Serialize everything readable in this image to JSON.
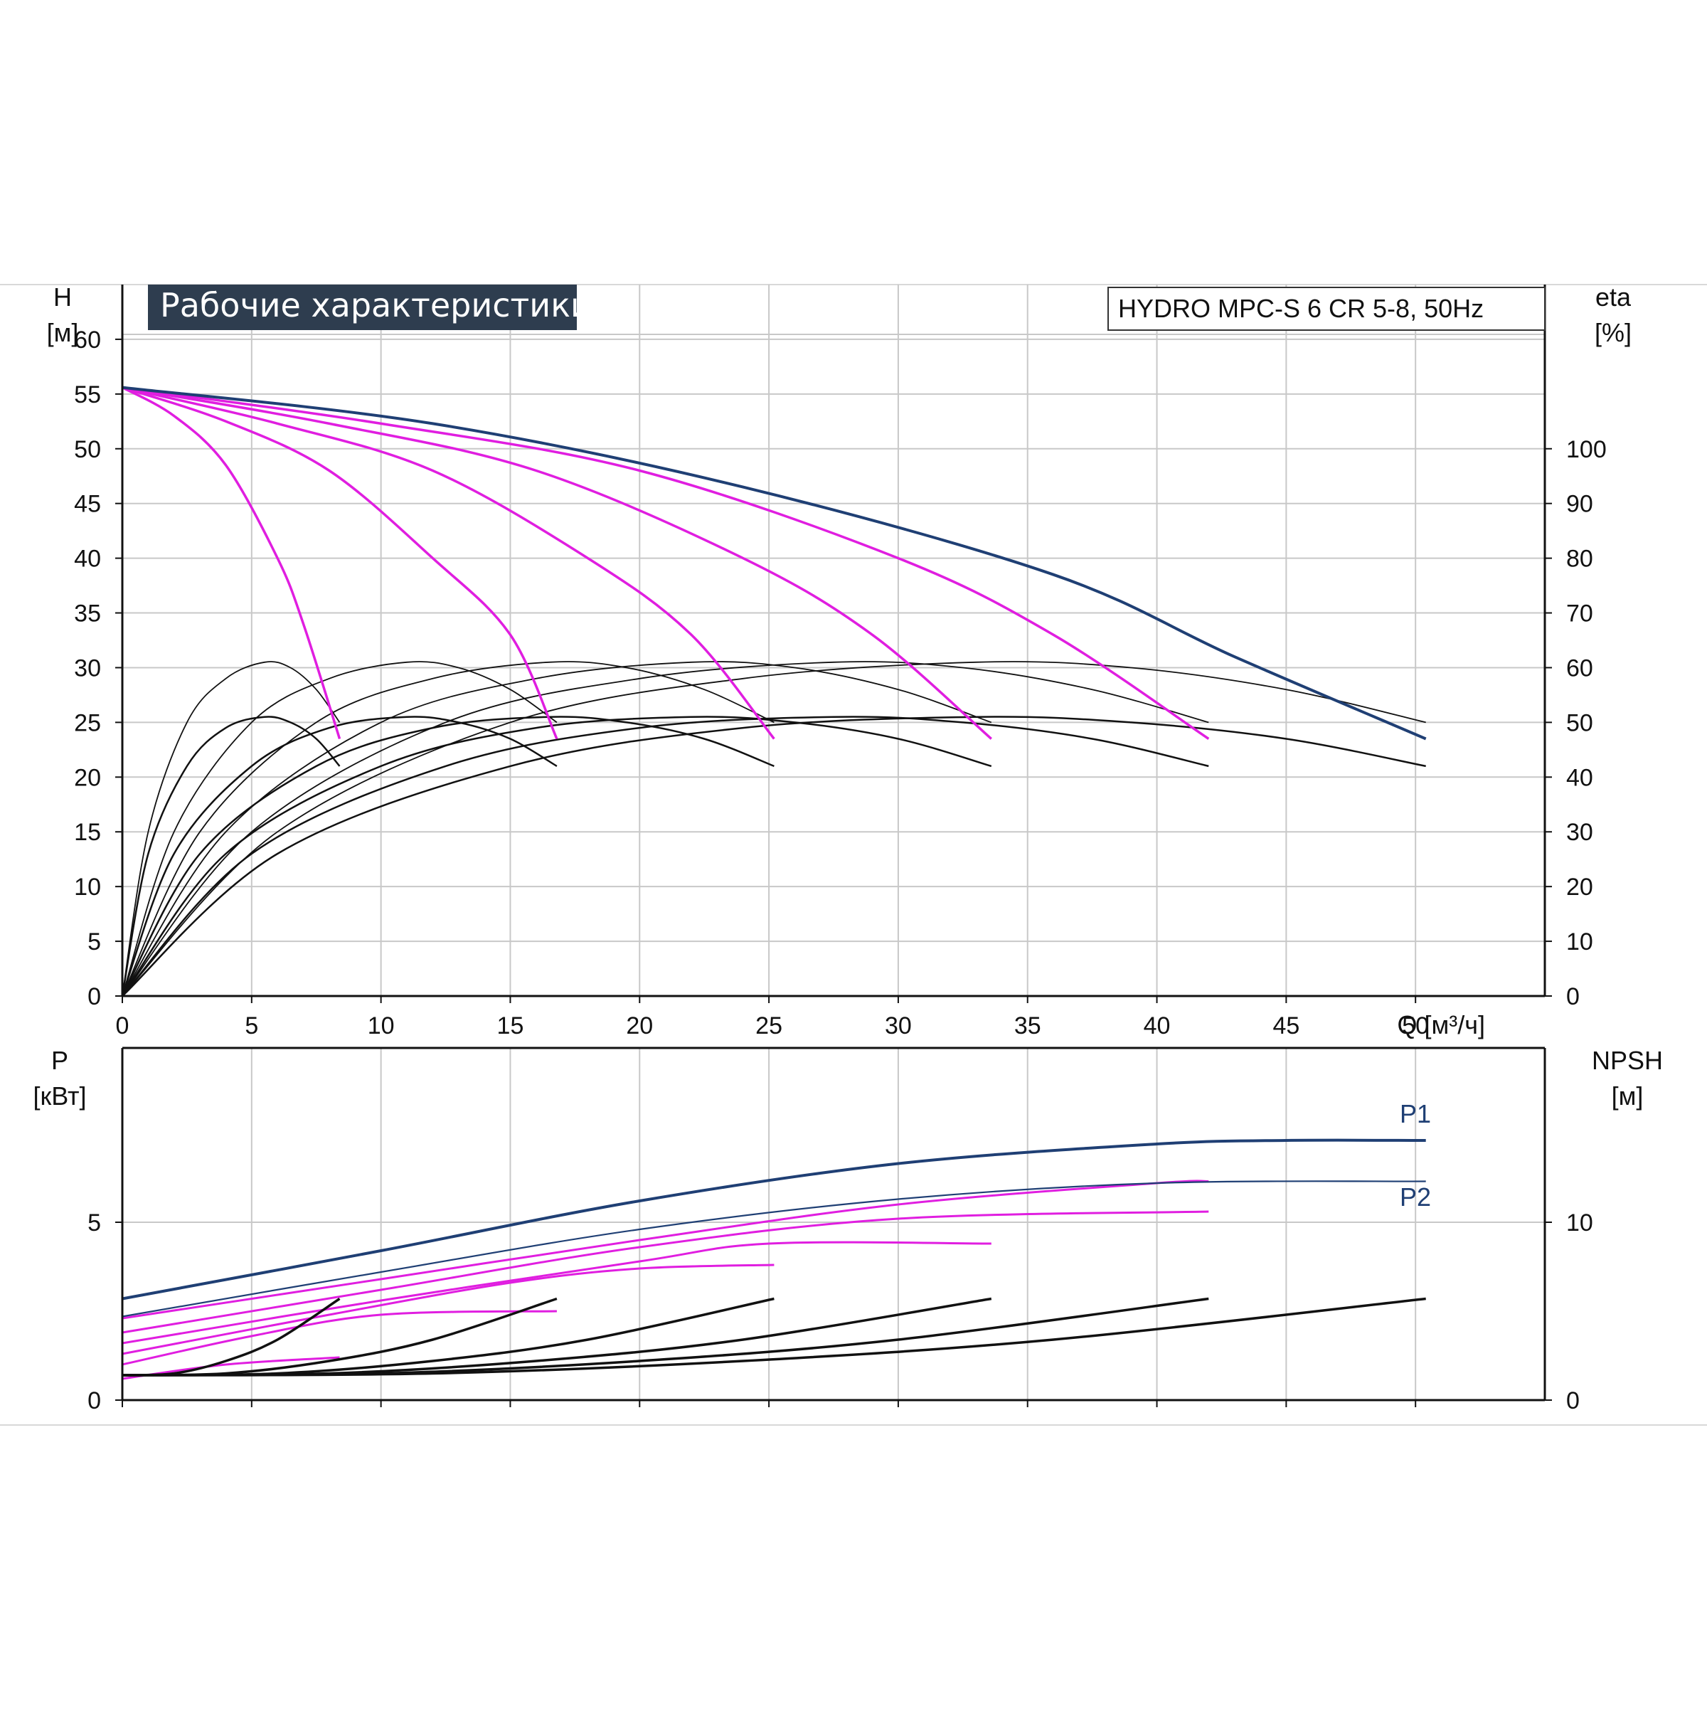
{
  "chart_data": [
    {
      "id": "performance",
      "type": "line",
      "title": "Рабочие характеристики",
      "model_label": "HYDRO MPC-S 6 CR 5-8, 50Hz",
      "left_axis": {
        "label": "H",
        "unit": "[м]",
        "ticks": [
          0,
          5,
          10,
          15,
          20,
          25,
          30,
          35,
          40,
          45,
          50,
          55,
          60
        ],
        "range": [
          0,
          65
        ]
      },
      "right_axis": {
        "label": "eta",
        "unit": "[%]",
        "ticks": [
          0,
          10,
          20,
          30,
          40,
          50,
          60,
          70,
          80,
          90,
          100
        ],
        "range": [
          0,
          130
        ]
      },
      "x_axis": {
        "label": "Q [м³/ч]",
        "ticks": [
          0,
          5,
          10,
          15,
          20,
          25,
          30,
          35,
          40,
          45,
          50
        ],
        "range": [
          0,
          55
        ]
      },
      "grid": true,
      "colors": {
        "overall": "#1f3f74",
        "pump_head": "#e01ee0",
        "efficiency": "#111111",
        "grid": "#c8c8c8"
      },
      "head_curves": [
        {
          "pumps": 1,
          "color": "magenta",
          "points": [
            [
              0,
              55.6
            ],
            [
              2,
              53
            ],
            [
              4,
              48.5
            ],
            [
              6,
              40
            ],
            [
              7,
              34
            ],
            [
              8.4,
              23.5
            ]
          ]
        },
        {
          "pumps": 2,
          "color": "magenta",
          "points": [
            [
              0,
              55.6
            ],
            [
              4,
              52.5
            ],
            [
              8,
              48
            ],
            [
              12,
              40
            ],
            [
              15,
              33
            ],
            [
              16.8,
              23.5
            ]
          ]
        },
        {
          "pumps": 3,
          "color": "magenta",
          "points": [
            [
              0,
              55.6
            ],
            [
              6,
              52.3
            ],
            [
              12,
              48
            ],
            [
              18,
              40
            ],
            [
              22,
              33
            ],
            [
              25.2,
              23.5
            ]
          ]
        },
        {
          "pumps": 4,
          "color": "magenta",
          "points": [
            [
              0,
              55.6
            ],
            [
              8,
              52.3
            ],
            [
              16,
              48
            ],
            [
              24,
              40
            ],
            [
              29,
              33
            ],
            [
              33.6,
              23.5
            ]
          ]
        },
        {
          "pumps": 5,
          "color": "magenta",
          "points": [
            [
              0,
              55.6
            ],
            [
              10,
              52.3
            ],
            [
              20,
              48
            ],
            [
              30,
              40
            ],
            [
              36,
              33
            ],
            [
              42,
              23.5
            ]
          ]
        },
        {
          "pumps": 6,
          "color": "navy",
          "points": [
            [
              0,
              55.6
            ],
            [
              12,
              52.3
            ],
            [
              24,
              46.5
            ],
            [
              36,
              38.5
            ],
            [
              43,
              31
            ],
            [
              50.4,
              23.5
            ]
          ]
        }
      ],
      "efficiency_curves": [
        {
          "pumps": 1,
          "points": [
            [
              0,
              0
            ],
            [
              1,
              30
            ],
            [
              2.5,
              50
            ],
            [
              4,
              58
            ],
            [
              5.5,
              61
            ],
            [
              6.5,
              60
            ],
            [
              7.5,
              56
            ],
            [
              8.4,
              50
            ]
          ]
        },
        {
          "pumps": 2,
          "points": [
            [
              0,
              0
            ],
            [
              2,
              30
            ],
            [
              5,
              50
            ],
            [
              8,
              58
            ],
            [
              11,
              61
            ],
            [
              13,
              60
            ],
            [
              15,
              56
            ],
            [
              16.8,
              50
            ]
          ]
        },
        {
          "pumps": 3,
          "points": [
            [
              0,
              0
            ],
            [
              3,
              30
            ],
            [
              7.5,
              50
            ],
            [
              12,
              58
            ],
            [
              16.5,
              61
            ],
            [
              19.5,
              60
            ],
            [
              22.5,
              56
            ],
            [
              25.2,
              50
            ]
          ]
        },
        {
          "pumps": 4,
          "points": [
            [
              0,
              0
            ],
            [
              4,
              30
            ],
            [
              10,
              50
            ],
            [
              16,
              58
            ],
            [
              22,
              61
            ],
            [
              26,
              60
            ],
            [
              30,
              56
            ],
            [
              33.6,
              50
            ]
          ]
        },
        {
          "pumps": 5,
          "points": [
            [
              0,
              0
            ],
            [
              5,
              30
            ],
            [
              12.5,
              50
            ],
            [
              20,
              58
            ],
            [
              27.5,
              61
            ],
            [
              32.5,
              60
            ],
            [
              37.5,
              56
            ],
            [
              42,
              50
            ]
          ]
        },
        {
          "pumps": 6,
          "points": [
            [
              0,
              0
            ],
            [
              6,
              30
            ],
            [
              15,
              50
            ],
            [
              24,
              58
            ],
            [
              33,
              61
            ],
            [
              39,
              60
            ],
            [
              45,
              56
            ],
            [
              50.4,
              50
            ]
          ]
        }
      ],
      "efficiency_curves_low": [
        {
          "pumps": 1,
          "points": [
            [
              0,
              0
            ],
            [
              1,
              26
            ],
            [
              2.5,
              42
            ],
            [
              4,
              49
            ],
            [
              5.5,
              51
            ],
            [
              6.5,
              50
            ],
            [
              7.5,
              47
            ],
            [
              8.4,
              42
            ]
          ]
        },
        {
          "pumps": 2,
          "points": [
            [
              0,
              0
            ],
            [
              2,
              26
            ],
            [
              5,
              42
            ],
            [
              8,
              49
            ],
            [
              11,
              51
            ],
            [
              13,
              50
            ],
            [
              15,
              47
            ],
            [
              16.8,
              42
            ]
          ]
        },
        {
          "pumps": 3,
          "points": [
            [
              0,
              0
            ],
            [
              3,
              26
            ],
            [
              7.5,
              42
            ],
            [
              12,
              49
            ],
            [
              16.5,
              51
            ],
            [
              19.5,
              50
            ],
            [
              22.5,
              47
            ],
            [
              25.2,
              42
            ]
          ]
        },
        {
          "pumps": 4,
          "points": [
            [
              0,
              0
            ],
            [
              4,
              26
            ],
            [
              10,
              42
            ],
            [
              16,
              49
            ],
            [
              22,
              51
            ],
            [
              26,
              50
            ],
            [
              30,
              47
            ],
            [
              33.6,
              42
            ]
          ]
        },
        {
          "pumps": 5,
          "points": [
            [
              0,
              0
            ],
            [
              5,
              26
            ],
            [
              12.5,
              42
            ],
            [
              20,
              49
            ],
            [
              27.5,
              51
            ],
            [
              32.5,
              50
            ],
            [
              37.5,
              47
            ],
            [
              42,
              42
            ]
          ]
        },
        {
          "pumps": 6,
          "points": [
            [
              0,
              0
            ],
            [
              6,
              26
            ],
            [
              15,
              42
            ],
            [
              24,
              49
            ],
            [
              33,
              51
            ],
            [
              39,
              50
            ],
            [
              45,
              47
            ],
            [
              50.4,
              42
            ]
          ]
        }
      ]
    },
    {
      "id": "power",
      "type": "line",
      "left_axis": {
        "label": "P",
        "unit": "[кВт]",
        "ticks": [
          0,
          5
        ],
        "range": [
          0,
          9.9
        ]
      },
      "right_axis": {
        "label": "NPSH",
        "unit": "[м]",
        "ticks": [
          0,
          10
        ],
        "range": [
          0,
          19.8
        ]
      },
      "x_axis": {
        "range": [
          0,
          55
        ]
      },
      "grid": true,
      "series_labels": [
        "P1",
        "P2"
      ],
      "p1_curve": {
        "points": [
          [
            0,
            2.85
          ],
          [
            10,
            4.2
          ],
          [
            20,
            5.6
          ],
          [
            30,
            6.65
          ],
          [
            40,
            7.2
          ],
          [
            45,
            7.3
          ],
          [
            50.4,
            7.3
          ]
        ]
      },
      "p2_curve": {
        "points": [
          [
            0,
            2.35
          ],
          [
            10,
            3.6
          ],
          [
            20,
            4.8
          ],
          [
            30,
            5.65
          ],
          [
            40,
            6.1
          ],
          [
            50.4,
            6.15
          ]
        ]
      },
      "magenta_power": [
        {
          "points": [
            [
              0,
              2.3
            ],
            [
              10,
              3.4
            ],
            [
              20,
              4.5
            ],
            [
              30,
              5.5
            ],
            [
              40,
              6.1
            ],
            [
              42,
              6.15
            ]
          ]
        },
        {
          "points": [
            [
              0,
              1.9
            ],
            [
              10,
              3.1
            ],
            [
              20,
              4.3
            ],
            [
              30,
              5.1
            ],
            [
              42,
              5.3
            ]
          ]
        },
        {
          "points": [
            [
              0,
              1.6
            ],
            [
              10,
              2.8
            ],
            [
              20,
              3.9
            ],
            [
              25,
              4.4
            ],
            [
              33.6,
              4.4
            ]
          ]
        },
        {
          "points": [
            [
              0,
              1.3
            ],
            [
              8,
              2.4
            ],
            [
              15,
              3.3
            ],
            [
              20,
              3.7
            ],
            [
              25.2,
              3.8
            ]
          ]
        },
        {
          "points": [
            [
              0,
              1.0
            ],
            [
              5,
              1.8
            ],
            [
              10,
              2.4
            ],
            [
              16.8,
              2.5
            ]
          ]
        },
        {
          "points": [
            [
              0,
              0.6
            ],
            [
              4,
              1.0
            ],
            [
              8.4,
              1.2
            ]
          ]
        }
      ],
      "npsh_curves": [
        {
          "points": [
            [
              0,
              1.4
            ],
            [
              2,
              1.5
            ],
            [
              4,
              2.2
            ],
            [
              6,
              3.4
            ],
            [
              8.4,
              5.7
            ]
          ]
        },
        {
          "points": [
            [
              0,
              1.4
            ],
            [
              4,
              1.5
            ],
            [
              8,
              2.2
            ],
            [
              12,
              3.4
            ],
            [
              16.8,
              5.7
            ]
          ]
        },
        {
          "points": [
            [
              0,
              1.4
            ],
            [
              6,
              1.5
            ],
            [
              12,
              2.2
            ],
            [
              18,
              3.4
            ],
            [
              25.2,
              5.7
            ]
          ]
        },
        {
          "points": [
            [
              0,
              1.4
            ],
            [
              8,
              1.5
            ],
            [
              16,
              2.2
            ],
            [
              24,
              3.4
            ],
            [
              33.6,
              5.7
            ]
          ]
        },
        {
          "points": [
            [
              0,
              1.4
            ],
            [
              10,
              1.5
            ],
            [
              20,
              2.2
            ],
            [
              30,
              3.4
            ],
            [
              42,
              5.7
            ]
          ]
        },
        {
          "points": [
            [
              0,
              1.4
            ],
            [
              12,
              1.5
            ],
            [
              24,
              2.2
            ],
            [
              36,
              3.4
            ],
            [
              50.4,
              5.7
            ]
          ]
        }
      ]
    }
  ]
}
